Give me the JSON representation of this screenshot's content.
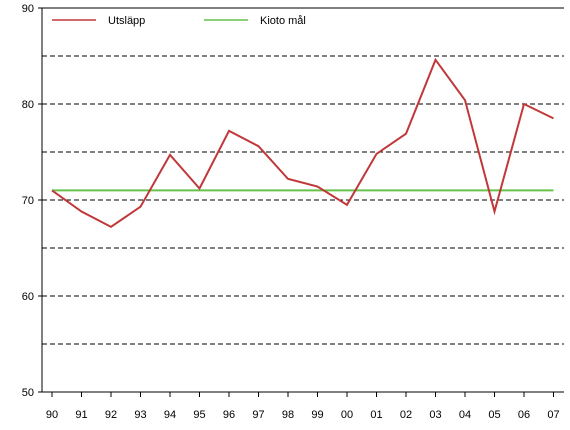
{
  "chart_data": {
    "type": "line",
    "title": "",
    "xlabel": "",
    "ylabel": "",
    "categories": [
      "90",
      "91",
      "92",
      "93",
      "94",
      "95",
      "96",
      "97",
      "98",
      "99",
      "00",
      "01",
      "02",
      "03",
      "04",
      "05",
      "06",
      "07"
    ],
    "ylim": [
      50,
      90
    ],
    "yticks": [
      50,
      60,
      70,
      80,
      90
    ],
    "grid": {
      "style": "dashed",
      "y_values": [
        55,
        60,
        65,
        70,
        75,
        80,
        85
      ]
    },
    "legend": {
      "placement": "top-left",
      "layout": "horizontal"
    },
    "series": [
      {
        "name": "Utsläpp",
        "color": "#c0383a",
        "values": [
          71.0,
          68.8,
          67.2,
          69.3,
          74.7,
          71.2,
          77.2,
          75.6,
          72.2,
          71.4,
          69.5,
          74.8,
          76.9,
          84.6,
          80.4,
          68.8,
          80.0,
          78.5
        ]
      },
      {
        "name": "Kioto mål",
        "color": "#66c24a",
        "values": [
          71.0,
          71.0,
          71.0,
          71.0,
          71.0,
          71.0,
          71.0,
          71.0,
          71.0,
          71.0,
          71.0,
          71.0,
          71.0,
          71.0,
          71.0,
          71.0,
          71.0,
          71.0
        ]
      }
    ]
  }
}
